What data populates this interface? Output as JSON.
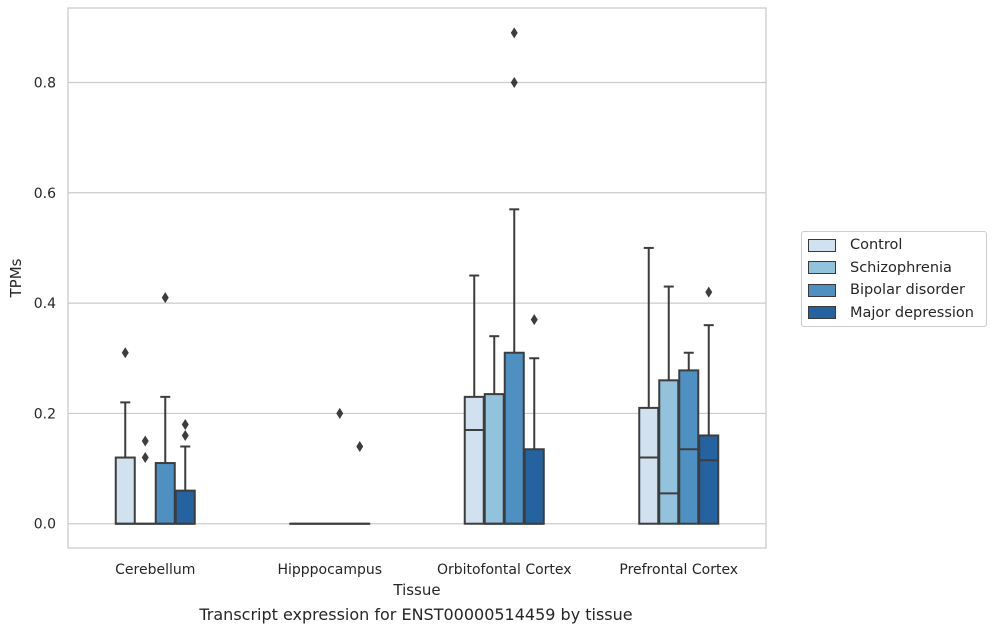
{
  "chart_data": {
    "type": "box",
    "caption": "Transcript expression for ENST00000514459 by tissue",
    "xlabel": "Tissue",
    "ylabel": "TPMs",
    "ylim": [
      -0.044,
      0.935
    ],
    "yticks": [
      0.0,
      0.2,
      0.4,
      0.6,
      0.8
    ],
    "ytick_labels": [
      "0.0",
      "0.2",
      "0.4",
      "0.6",
      "0.8"
    ],
    "grid": true,
    "legend_position": "right",
    "categories": [
      "Cerebellum",
      "Hipppocampus",
      "Orbitofontal Cortex",
      "Prefrontal Cortex"
    ],
    "series": [
      {
        "name": "Control",
        "color": "#d1e1f0",
        "boxes": [
          {
            "q1": 0,
            "median": 0,
            "q3": 0.12,
            "whisker_low": 0,
            "whisker_high": 0.22,
            "outliers": [
              0.31
            ]
          },
          {
            "q1": 0,
            "median": 0,
            "q3": 0,
            "whisker_low": 0,
            "whisker_high": 0,
            "outliers": []
          },
          {
            "q1": 0,
            "median": 0.17,
            "q3": 0.23,
            "whisker_low": 0,
            "whisker_high": 0.45,
            "outliers": []
          },
          {
            "q1": 0,
            "median": 0.12,
            "q3": 0.21,
            "whisker_low": 0,
            "whisker_high": 0.5,
            "outliers": []
          }
        ]
      },
      {
        "name": "Schizophrenia",
        "color": "#93c2dc",
        "boxes": [
          {
            "q1": 0,
            "median": 0,
            "q3": 0,
            "whisker_low": 0,
            "whisker_high": 0,
            "outliers": [
              0.12,
              0.15
            ]
          },
          {
            "q1": 0,
            "median": 0,
            "q3": 0,
            "whisker_low": 0,
            "whisker_high": 0,
            "outliers": []
          },
          {
            "q1": 0,
            "median": 0,
            "q3": 0.235,
            "whisker_low": 0,
            "whisker_high": 0.34,
            "outliers": []
          },
          {
            "q1": 0,
            "median": 0.055,
            "q3": 0.26,
            "whisker_low": 0,
            "whisker_high": 0.43,
            "outliers": []
          }
        ]
      },
      {
        "name": "Bipolar disorder",
        "color": "#4e90c2",
        "boxes": [
          {
            "q1": 0,
            "median": 0,
            "q3": 0.11,
            "whisker_low": 0,
            "whisker_high": 0.23,
            "outliers": [
              0.41
            ]
          },
          {
            "q1": 0,
            "median": 0,
            "q3": 0,
            "whisker_low": 0,
            "whisker_high": 0,
            "outliers": [
              0.2
            ]
          },
          {
            "q1": 0,
            "median": 0,
            "q3": 0.31,
            "whisker_low": 0,
            "whisker_high": 0.57,
            "outliers": [
              0.8,
              0.89
            ]
          },
          {
            "q1": 0,
            "median": 0.135,
            "q3": 0.278,
            "whisker_low": 0,
            "whisker_high": 0.31,
            "outliers": []
          }
        ]
      },
      {
        "name": "Major depression",
        "color": "#2562a0",
        "boxes": [
          {
            "q1": 0,
            "median": 0,
            "q3": 0.06,
            "whisker_low": 0,
            "whisker_high": 0.14,
            "outliers": [
              0.16,
              0.18
            ]
          },
          {
            "q1": 0,
            "median": 0,
            "q3": 0,
            "whisker_low": 0,
            "whisker_high": 0,
            "outliers": [
              0.14
            ]
          },
          {
            "q1": 0,
            "median": 0,
            "q3": 0.135,
            "whisker_low": 0,
            "whisker_high": 0.3,
            "outliers": [
              0.37
            ]
          },
          {
            "q1": 0,
            "median": 0.115,
            "q3": 0.16,
            "whisker_low": 0,
            "whisker_high": 0.36,
            "outliers": [
              0.42
            ]
          }
        ]
      }
    ]
  }
}
